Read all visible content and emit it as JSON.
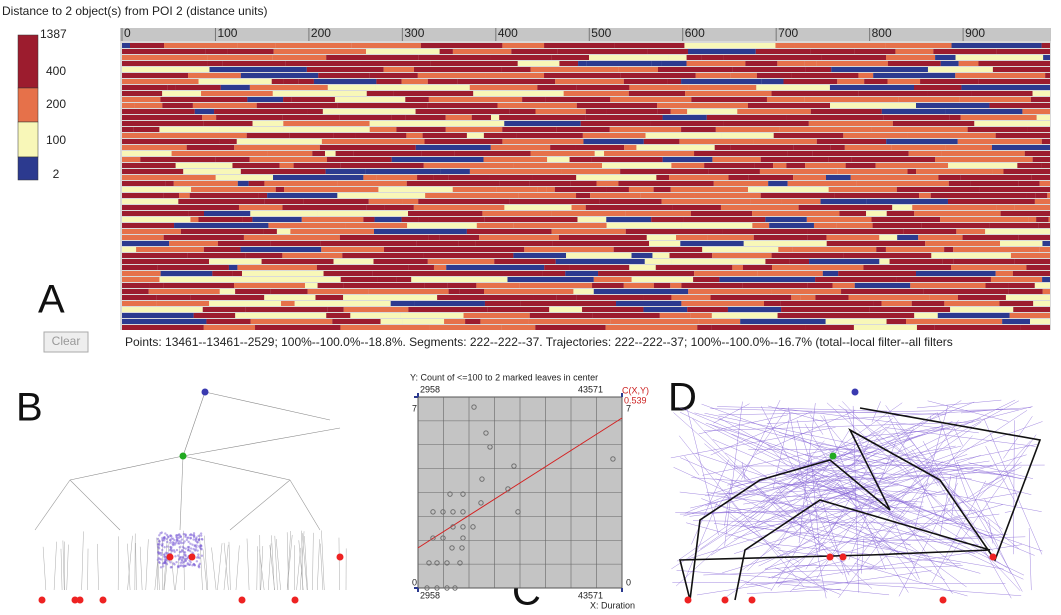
{
  "title": "Distance to 2 object(s) from POI 2 (distance units)",
  "legend": {
    "labels": [
      1387,
      400,
      200,
      100,
      2
    ],
    "colors": [
      "#9c1c2e",
      "#e6714a",
      "#f8f7b8",
      "#2c3a8f"
    ]
  },
  "timeline": {
    "xlim": [
      0,
      993
    ],
    "xticks": [
      0,
      100,
      200,
      300,
      400,
      500,
      600,
      700,
      800,
      900
    ]
  },
  "clear_button": "Clear",
  "status": "Points: 13461--13461--2529; 100%--100.0%--18.8%. Segments: 222--222--37. Trajectories: 222--222--37; 100%--100.0%--16.7% (total--local filter--all filters",
  "panels": [
    "A",
    "B",
    "C",
    "D"
  ],
  "scatter": {
    "type": "scatter",
    "title": "Y: Count of <=100 to 2 marked leaves in center",
    "x_label": "X: Duration",
    "correlation_label": "C(X,Y)",
    "correlation": 0.539,
    "xlim": [
      2958,
      43571
    ],
    "ylim": [
      0,
      7
    ],
    "xticks": [
      2958,
      43571
    ],
    "yticks": [
      0,
      7
    ],
    "color": "#6e6e6e",
    "trend_color": "#d42020",
    "trend": [
      1.47,
      6.23
    ],
    "x": [
      14108,
      16490,
      17290,
      22062,
      15694,
      20868,
      9330,
      11914,
      15496,
      5944,
      7936,
      9926,
      11914,
      22858,
      9926,
      11914,
      13904,
      5944,
      7936,
      11914,
      9728,
      11716,
      5147,
      6740,
      8730,
      11316,
      4749,
      6740,
      8730,
      10322,
      41766
    ],
    "y": [
      6.63,
      5.68,
      5.17,
      4.47,
      3.99,
      3.63,
      3.44,
      3.44,
      3.12,
      2.79,
      2.79,
      2.79,
      2.79,
      2.79,
      2.24,
      2.24,
      2.24,
      1.83,
      1.83,
      1.83,
      1.47,
      1.47,
      0.92,
      0.92,
      0.92,
      0.92,
      0,
      0,
      0,
      0,
      4.73
    ]
  }
}
